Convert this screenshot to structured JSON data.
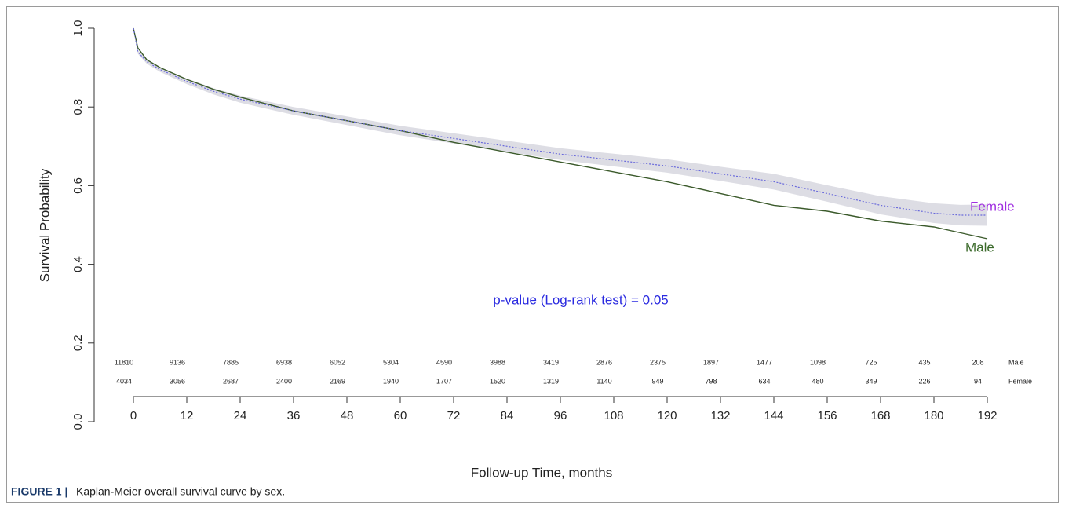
{
  "chart_data": {
    "type": "line",
    "x_label": "Follow-up Time, months",
    "y_label": "Survival Probability",
    "annotation": "p-value (Log-rank test) = 0.05",
    "caption_label": "FIGURE 1 |",
    "caption": "Kaplan-Meier overall survival curve by sex.",
    "xlim": [
      0,
      192
    ],
    "ylim": [
      0,
      1
    ],
    "xticks": [
      0,
      12,
      24,
      36,
      48,
      60,
      72,
      84,
      96,
      108,
      120,
      132,
      144,
      156,
      168,
      180,
      192
    ],
    "yticks": [
      {
        "value": 0,
        "label": "0.0"
      },
      0.2,
      0.4,
      0.6,
      0.8,
      {
        "value": 1,
        "label": "1.0"
      }
    ],
    "x": [
      0,
      1,
      3,
      6,
      12,
      18,
      24,
      36,
      48,
      60,
      72,
      84,
      96,
      108,
      120,
      132,
      144,
      156,
      168,
      180,
      186,
      192
    ],
    "series": [
      {
        "name": "Male",
        "color": "#3b5a2b",
        "label_color": "#3b6a2b",
        "values": [
          1.0,
          0.95,
          0.92,
          0.9,
          0.87,
          0.845,
          0.825,
          0.79,
          0.765,
          0.74,
          0.71,
          0.685,
          0.66,
          0.635,
          0.61,
          0.58,
          0.55,
          0.535,
          0.51,
          0.495,
          0.48,
          0.465
        ],
        "at_risk": [
          11810,
          9136,
          7885,
          6938,
          6052,
          5304,
          4590,
          3988,
          3419,
          2876,
          2375,
          1897,
          1477,
          1098,
          725,
          435,
          208
        ]
      },
      {
        "name": "Female",
        "color": "#6a6adb",
        "label_color": "#a030e0",
        "ci_color": "#cfcfd8",
        "values": [
          1.0,
          0.94,
          0.915,
          0.895,
          0.865,
          0.84,
          0.82,
          0.79,
          0.765,
          0.74,
          0.72,
          0.7,
          0.68,
          0.665,
          0.65,
          0.63,
          0.61,
          0.58,
          0.55,
          0.53,
          0.525,
          0.525
        ],
        "ci_lower": [
          1.0,
          0.935,
          0.91,
          0.889,
          0.858,
          0.832,
          0.811,
          0.78,
          0.754,
          0.728,
          0.707,
          0.686,
          0.665,
          0.649,
          0.633,
          0.612,
          0.59,
          0.559,
          0.527,
          0.505,
          0.499,
          0.498
        ],
        "ci_upper": [
          1.0,
          0.945,
          0.92,
          0.901,
          0.872,
          0.848,
          0.829,
          0.8,
          0.776,
          0.752,
          0.733,
          0.714,
          0.695,
          0.681,
          0.667,
          0.648,
          0.63,
          0.601,
          0.573,
          0.555,
          0.551,
          0.552
        ],
        "at_risk": [
          4034,
          3056,
          2687,
          2400,
          2169,
          1940,
          1707,
          1520,
          1319,
          1140,
          949,
          798,
          634,
          480,
          349,
          226,
          94
        ]
      }
    ]
  }
}
